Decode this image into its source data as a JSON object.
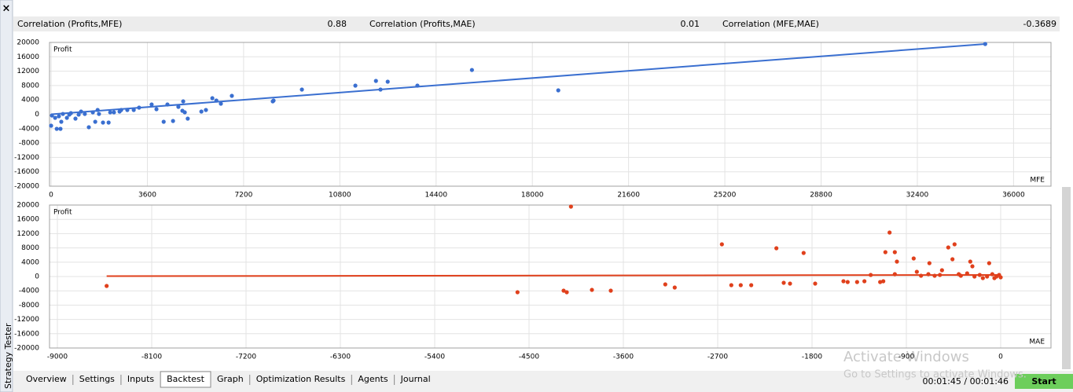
{
  "sidebar": {
    "close": "×",
    "title": "Strategy Tester"
  },
  "header": {
    "items": [
      {
        "label": "Correlation (Profits,MFE)",
        "value": 0.88
      },
      {
        "label": "Correlation (Profits,MAE)",
        "value": 0.01
      },
      {
        "label": "Correlation (MFE,MAE)",
        "value": -0.3689
      }
    ]
  },
  "chart_data": [
    {
      "type": "scatter",
      "y_label": "Profit",
      "x_label": "MFE",
      "color": "#3a6fd0",
      "xlim": [
        -60,
        37400
      ],
      "ylim": [
        -20000,
        20000
      ],
      "grid": true,
      "xticks": [
        0,
        3600,
        7200,
        10800,
        14400,
        18000,
        21600,
        25200,
        28800,
        32400,
        36000
      ],
      "yticks": [
        -20000,
        -16000,
        -12000,
        -8000,
        -4000,
        0,
        4000,
        8000,
        12000,
        16000,
        20000
      ],
      "x": [
        34940,
        15740,
        18970,
        13700,
        12590,
        12150,
        12320,
        11380,
        9380,
        8320,
        8290,
        6760,
        6350,
        6030,
        6180,
        5790,
        5620,
        5110,
        4940,
        4910,
        5000,
        4760,
        4350,
        4210,
        4560,
        3940,
        3760,
        3290,
        2850,
        2620,
        2350,
        2210,
        2150,
        1940,
        1740,
        1650,
        1410,
        1120,
        910,
        680,
        380,
        350,
        210,
        0,
        30,
        150,
        290,
        440,
        590,
        740,
        1030,
        1260,
        1560,
        1790,
        2560,
        3090
      ],
      "values": [
        19560,
        12330,
        6670,
        7980,
        9070,
        9290,
        6890,
        7980,
        6890,
        3830,
        3600,
        5140,
        2950,
        4480,
        3830,
        1200,
        760,
        -1200,
        3600,
        980,
        540,
        2080,
        2730,
        -2080,
        -1860,
        1420,
        2730,
        1860,
        1200,
        1200,
        540,
        540,
        -2300,
        -2300,
        1200,
        -2080,
        -3600,
        760,
        -1200,
        -100,
        -2080,
        -4040,
        -4040,
        -3170,
        -330,
        -980,
        -550,
        100,
        -980,
        330,
        -100,
        100,
        540,
        100,
        760,
        1200
      ],
      "trendline": {
        "x": [
          0,
          35000
        ],
        "values": [
          0,
          19600
        ]
      }
    },
    {
      "type": "scatter",
      "y_label": "Profit",
      "x_label": "MAE",
      "color": "#e0401c",
      "xlim": [
        -9075,
        480
      ],
      "ylim": [
        -20000,
        20000
      ],
      "grid": true,
      "xticks": [
        -9000,
        -8100,
        -7200,
        -6300,
        -5400,
        -4500,
        -3600,
        -2700,
        -1800,
        -900,
        0
      ],
      "yticks": [
        -20000,
        -16000,
        -12000,
        -8000,
        -4000,
        0,
        4000,
        8000,
        12000,
        16000,
        20000
      ],
      "x": [
        -8530,
        -4100,
        -4610,
        -4170,
        -4140,
        -3900,
        -3720,
        -3200,
        -3110,
        -2660,
        -2570,
        -2480,
        -2380,
        -2140,
        -2070,
        -2010,
        -1880,
        -1770,
        -1500,
        -1460,
        -1370,
        -1300,
        -1240,
        -1150,
        -1120,
        -1100,
        -1060,
        -1010,
        -990,
        -1010,
        -830,
        -800,
        -680,
        -690,
        -630,
        -560,
        -500,
        -440,
        -460,
        -400,
        -320,
        -290,
        -270,
        -250,
        -200,
        -170,
        -130,
        -110,
        -80,
        -60,
        -40,
        -15,
        0,
        -380,
        -580,
        -760
      ],
      "values": [
        -2640,
        19560,
        -4400,
        -3960,
        -4400,
        -3740,
        -3960,
        -2200,
        -3080,
        9010,
        -2420,
        -2420,
        -2420,
        7910,
        -1760,
        -1980,
        6590,
        -1980,
        -1320,
        -1540,
        -1540,
        -1320,
        440,
        -1540,
        -1320,
        6810,
        12310,
        6810,
        4180,
        660,
        5060,
        1320,
        3740,
        660,
        220,
        1760,
        8130,
        9010,
        4840,
        660,
        880,
        4180,
        2860,
        0,
        440,
        -440,
        0,
        3740,
        660,
        -440,
        0,
        440,
        -220,
        220,
        440,
        220
      ],
      "trendline": {
        "x": [
          -8530,
          0
        ],
        "values": [
          100,
          450
        ]
      }
    }
  ],
  "tabs": [
    "Overview",
    "Settings",
    "Inputs",
    "Backtest",
    "Graph",
    "Optimization Results",
    "Agents",
    "Journal"
  ],
  "active_tab": "Backtest",
  "status": {
    "time": "00:01:45 / 00:01:46",
    "button": "Start"
  },
  "watermark": {
    "title": "Activate Windows",
    "subtitle": "Go to Settings to activate Windows."
  }
}
